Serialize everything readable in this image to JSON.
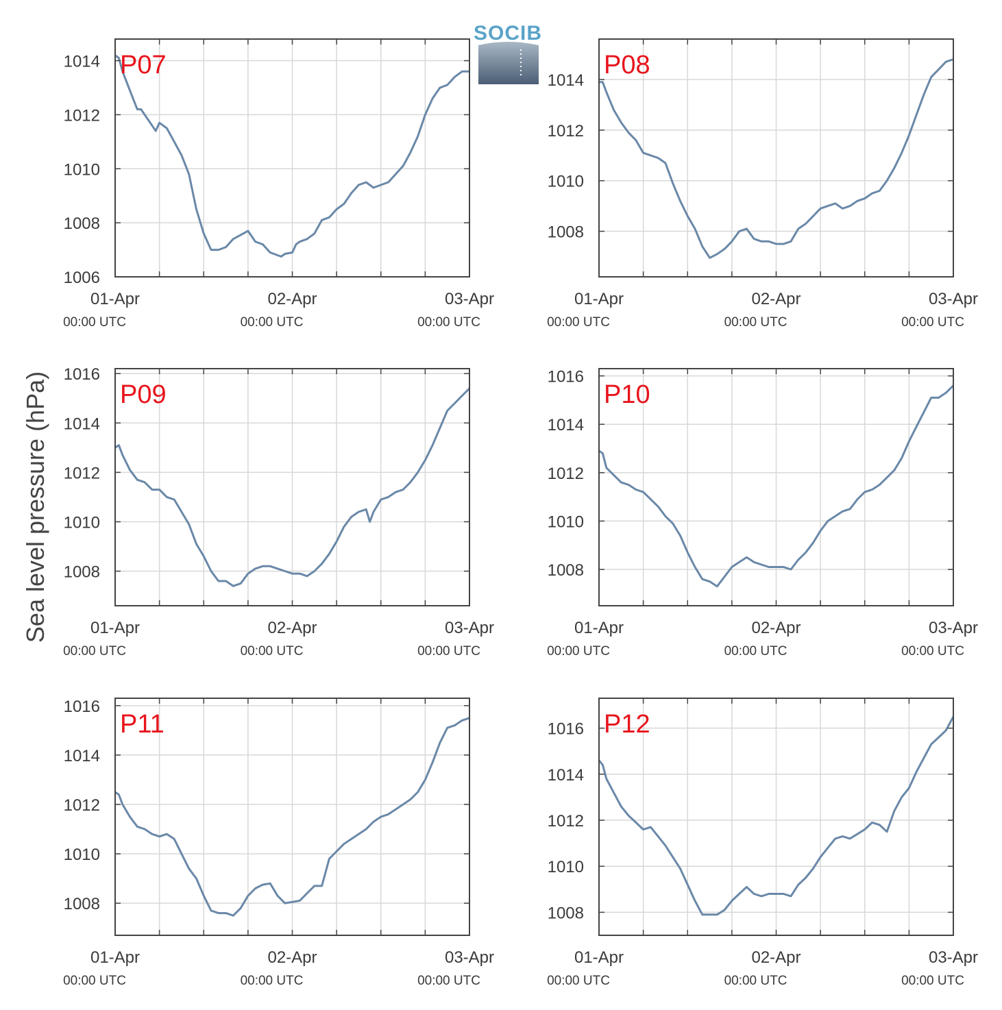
{
  "ylabel": "Sea level pressure (hPa)",
  "logo": {
    "text": "SOCIB"
  },
  "colors": {
    "line": "#6a88a8",
    "panel_label": "#e8141c",
    "grid": "#d8d8d8",
    "axis": "#444444"
  },
  "chart_data": [
    {
      "type": "line",
      "label": "P07",
      "xticks": [
        "01-Apr",
        "02-Apr",
        "03-Apr"
      ],
      "xtick_sub": [
        "00:00 UTC",
        "00:00 UTC",
        "00:00 UTC"
      ],
      "xlim_hours": [
        0,
        48
      ],
      "ylim": [
        1006,
        1014.8
      ],
      "yticks": [
        1006,
        1008,
        1010,
        1012,
        1014
      ],
      "grid": true,
      "series": [
        {
          "x": [
            0,
            0.5,
            1,
            2,
            3,
            3.5,
            4,
            5,
            5.5,
            6,
            6.5,
            7,
            8,
            9,
            10,
            11,
            12,
            13,
            14,
            15,
            16,
            17,
            18,
            19,
            20,
            21,
            22,
            22.5,
            23,
            24,
            24.5,
            25,
            26,
            27,
            28,
            29,
            30,
            31,
            32,
            33,
            34,
            35,
            36,
            37,
            38,
            39,
            40,
            41,
            42,
            43,
            44,
            45,
            46,
            47,
            48
          ],
          "y": [
            1014.2,
            1014.1,
            1013.6,
            1012.9,
            1012.2,
            1012.2,
            1012.0,
            1011.6,
            1011.4,
            1011.7,
            1011.6,
            1011.5,
            1011.0,
            1010.5,
            1009.8,
            1008.5,
            1007.6,
            1007.0,
            1007.0,
            1007.1,
            1007.4,
            1007.55,
            1007.7,
            1007.3,
            1007.2,
            1006.9,
            1006.8,
            1006.75,
            1006.85,
            1006.9,
            1007.2,
            1007.3,
            1007.4,
            1007.6,
            1008.1,
            1008.2,
            1008.5,
            1008.7,
            1009.1,
            1009.4,
            1009.5,
            1009.3,
            1009.4,
            1009.5,
            1009.8,
            1010.1,
            1010.6,
            1011.2,
            1012.0,
            1012.6,
            1013.0,
            1013.1,
            1013.4,
            1013.6,
            1013.6
          ]
        }
      ]
    },
    {
      "type": "line",
      "label": "P08",
      "xticks": [
        "01-Apr",
        "02-Apr",
        "03-Apr"
      ],
      "xtick_sub": [
        "00:00 UTC",
        "00:00 UTC",
        "00:00 UTC"
      ],
      "xlim_hours": [
        0,
        48
      ],
      "ylim": [
        1006.2,
        1015.6
      ],
      "yticks": [
        1008,
        1010,
        1012,
        1014
      ],
      "grid": true,
      "series": [
        {
          "x": [
            0,
            0.5,
            1,
            2,
            3,
            4,
            5,
            6,
            7,
            8,
            9,
            10,
            11,
            12,
            13,
            14,
            15,
            16,
            17,
            18,
            19,
            20,
            21,
            22,
            23,
            24,
            25,
            26,
            27,
            28,
            29,
            30,
            31,
            32,
            33,
            34,
            35,
            36,
            37,
            38,
            39,
            40,
            41,
            42,
            43,
            44,
            45,
            46,
            47,
            48
          ],
          "y": [
            1013.9,
            1013.9,
            1013.5,
            1012.8,
            1012.3,
            1011.9,
            1011.6,
            1011.1,
            1011.0,
            1010.9,
            1010.7,
            1009.9,
            1009.2,
            1008.6,
            1008.1,
            1007.4,
            1006.95,
            1007.1,
            1007.3,
            1007.6,
            1008.0,
            1008.1,
            1007.7,
            1007.6,
            1007.6,
            1007.5,
            1007.5,
            1007.6,
            1008.1,
            1008.3,
            1008.6,
            1008.9,
            1009.0,
            1009.1,
            1008.9,
            1009.0,
            1009.2,
            1009.3,
            1009.5,
            1009.6,
            1010.0,
            1010.5,
            1011.1,
            1011.8,
            1012.6,
            1013.4,
            1014.1,
            1014.4,
            1014.7,
            1014.8
          ]
        }
      ]
    },
    {
      "type": "line",
      "label": "P09",
      "xticks": [
        "01-Apr",
        "02-Apr",
        "03-Apr"
      ],
      "xtick_sub": [
        "00:00 UTC",
        "00:00 UTC",
        "00:00 UTC"
      ],
      "xlim_hours": [
        0,
        48
      ],
      "ylim": [
        1006.6,
        1016.2
      ],
      "yticks": [
        1008,
        1010,
        1012,
        1014,
        1016
      ],
      "grid": true,
      "series": [
        {
          "x": [
            0,
            0.5,
            1,
            2,
            3,
            4,
            5,
            6,
            7,
            8,
            9,
            10,
            11,
            12,
            13,
            14,
            15,
            16,
            17,
            18,
            19,
            20,
            21,
            22,
            23,
            24,
            25,
            26,
            27,
            28,
            29,
            30,
            31,
            32,
            33,
            34,
            34.5,
            35,
            36,
            37,
            38,
            39,
            40,
            41,
            42,
            43,
            44,
            45,
            46,
            47,
            48
          ],
          "y": [
            1013.0,
            1013.1,
            1012.7,
            1012.1,
            1011.7,
            1011.6,
            1011.3,
            1011.3,
            1011.0,
            1010.9,
            1010.4,
            1009.9,
            1009.1,
            1008.6,
            1008.0,
            1007.6,
            1007.6,
            1007.4,
            1007.5,
            1007.9,
            1008.1,
            1008.2,
            1008.2,
            1008.1,
            1008.0,
            1007.9,
            1007.9,
            1007.8,
            1008.0,
            1008.3,
            1008.7,
            1009.2,
            1009.8,
            1010.2,
            1010.4,
            1010.5,
            1010.0,
            1010.4,
            1010.9,
            1011.0,
            1011.2,
            1011.3,
            1011.6,
            1012.0,
            1012.5,
            1013.1,
            1013.8,
            1014.5,
            1014.8,
            1015.1,
            1015.4
          ]
        }
      ]
    },
    {
      "type": "line",
      "label": "P10",
      "xticks": [
        "01-Apr",
        "02-Apr",
        "03-Apr"
      ],
      "xtick_sub": [
        "00:00 UTC",
        "00:00 UTC",
        "00:00 UTC"
      ],
      "xlim_hours": [
        0,
        48
      ],
      "ylim": [
        1006.5,
        1016.3
      ],
      "yticks": [
        1008,
        1010,
        1012,
        1014,
        1016
      ],
      "grid": true,
      "series": [
        {
          "x": [
            0,
            0.5,
            1,
            2,
            3,
            4,
            5,
            6,
            7,
            8,
            9,
            10,
            11,
            12,
            13,
            14,
            15,
            16,
            17,
            18,
            19,
            20,
            21,
            22,
            23,
            24,
            25,
            26,
            27,
            28,
            29,
            30,
            31,
            32,
            33,
            34,
            35,
            36,
            37,
            38,
            39,
            40,
            41,
            42,
            43,
            44,
            45,
            46,
            47,
            48
          ],
          "y": [
            1012.9,
            1012.8,
            1012.2,
            1011.9,
            1011.6,
            1011.5,
            1011.3,
            1011.2,
            1010.9,
            1010.6,
            1010.2,
            1009.9,
            1009.4,
            1008.7,
            1008.1,
            1007.6,
            1007.5,
            1007.3,
            1007.7,
            1008.1,
            1008.3,
            1008.5,
            1008.3,
            1008.2,
            1008.1,
            1008.1,
            1008.1,
            1008.0,
            1008.4,
            1008.7,
            1009.1,
            1009.6,
            1010.0,
            1010.2,
            1010.4,
            1010.5,
            1010.9,
            1011.2,
            1011.3,
            1011.5,
            1011.8,
            1012.1,
            1012.6,
            1013.3,
            1013.9,
            1014.5,
            1015.1,
            1015.1,
            1015.3,
            1015.6
          ]
        }
      ]
    },
    {
      "type": "line",
      "label": "P11",
      "xticks": [
        "01-Apr",
        "02-Apr",
        "03-Apr"
      ],
      "xtick_sub": [
        "00:00 UTC",
        "00:00 UTC",
        "00:00 UTC"
      ],
      "xlim_hours": [
        0,
        48
      ],
      "ylim": [
        1006.7,
        1016.3
      ],
      "yticks": [
        1008,
        1010,
        1012,
        1014,
        1016
      ],
      "grid": true,
      "series": [
        {
          "x": [
            0,
            0.5,
            1,
            2,
            3,
            4,
            5,
            6,
            7,
            8,
            9,
            10,
            11,
            12,
            13,
            14,
            15,
            16,
            17,
            18,
            19,
            20,
            21,
            22,
            23,
            24,
            25,
            26,
            27,
            28,
            29,
            30,
            31,
            32,
            33,
            34,
            35,
            36,
            37,
            38,
            39,
            40,
            41,
            42,
            43,
            44,
            45,
            46,
            47,
            48
          ],
          "y": [
            1012.5,
            1012.4,
            1012.0,
            1011.5,
            1011.1,
            1011.0,
            1010.8,
            1010.7,
            1010.8,
            1010.6,
            1010.0,
            1009.4,
            1009.0,
            1008.3,
            1007.7,
            1007.6,
            1007.6,
            1007.5,
            1007.8,
            1008.3,
            1008.6,
            1008.75,
            1008.8,
            1008.3,
            1008.0,
            1008.05,
            1008.1,
            1008.4,
            1008.7,
            1008.7,
            1009.8,
            1010.1,
            1010.4,
            1010.6,
            1010.8,
            1011.0,
            1011.3,
            1011.5,
            1011.6,
            1011.8,
            1012.0,
            1012.2,
            1012.5,
            1013.0,
            1013.7,
            1014.5,
            1015.1,
            1015.2,
            1015.4,
            1015.5
          ]
        }
      ]
    },
    {
      "type": "line",
      "label": "P12",
      "xticks": [
        "01-Apr",
        "02-Apr",
        "03-Apr"
      ],
      "xtick_sub": [
        "00:00 UTC",
        "00:00 UTC",
        "00:00 UTC"
      ],
      "xlim_hours": [
        0,
        48
      ],
      "ylim": [
        1007.0,
        1017.3
      ],
      "yticks": [
        1008,
        1010,
        1012,
        1014,
        1016
      ],
      "grid": true,
      "series": [
        {
          "x": [
            0,
            0.5,
            1,
            2,
            3,
            4,
            5,
            6,
            7,
            8,
            9,
            10,
            11,
            12,
            13,
            14,
            15,
            16,
            17,
            18,
            19,
            20,
            21,
            22,
            23,
            24,
            25,
            26,
            27,
            28,
            29,
            30,
            31,
            32,
            33,
            34,
            35,
            36,
            37,
            38,
            39,
            40,
            41,
            42,
            43,
            44,
            45,
            46,
            47,
            48
          ],
          "y": [
            1014.6,
            1014.4,
            1013.8,
            1013.2,
            1012.6,
            1012.2,
            1011.9,
            1011.6,
            1011.7,
            1011.3,
            1010.9,
            1010.4,
            1009.9,
            1009.2,
            1008.5,
            1007.9,
            1007.9,
            1007.9,
            1008.1,
            1008.5,
            1008.8,
            1009.1,
            1008.8,
            1008.7,
            1008.8,
            1008.8,
            1008.8,
            1008.7,
            1009.2,
            1009.5,
            1009.9,
            1010.4,
            1010.8,
            1011.2,
            1011.3,
            1011.2,
            1011.4,
            1011.6,
            1011.9,
            1011.8,
            1011.5,
            1012.4,
            1013.0,
            1013.4,
            1014.1,
            1014.7,
            1015.3,
            1015.6,
            1015.9,
            1016.5
          ]
        }
      ]
    }
  ]
}
